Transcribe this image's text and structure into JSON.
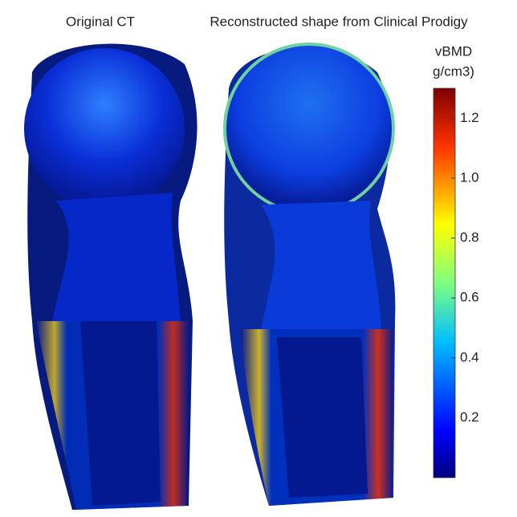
{
  "panels": [
    {
      "title": "Original CT"
    },
    {
      "title": "Reconstructed shape from Clinical Prodigy"
    }
  ],
  "colorbar": {
    "label_lines": [
      "vBMD",
      "g/cm3)"
    ],
    "lim": [
      0,
      1.3
    ],
    "ticks": [
      0.2,
      0.4,
      0.6,
      0.8,
      {
        "value": 1,
        "label": "1.0"
      },
      1.2
    ]
  }
}
